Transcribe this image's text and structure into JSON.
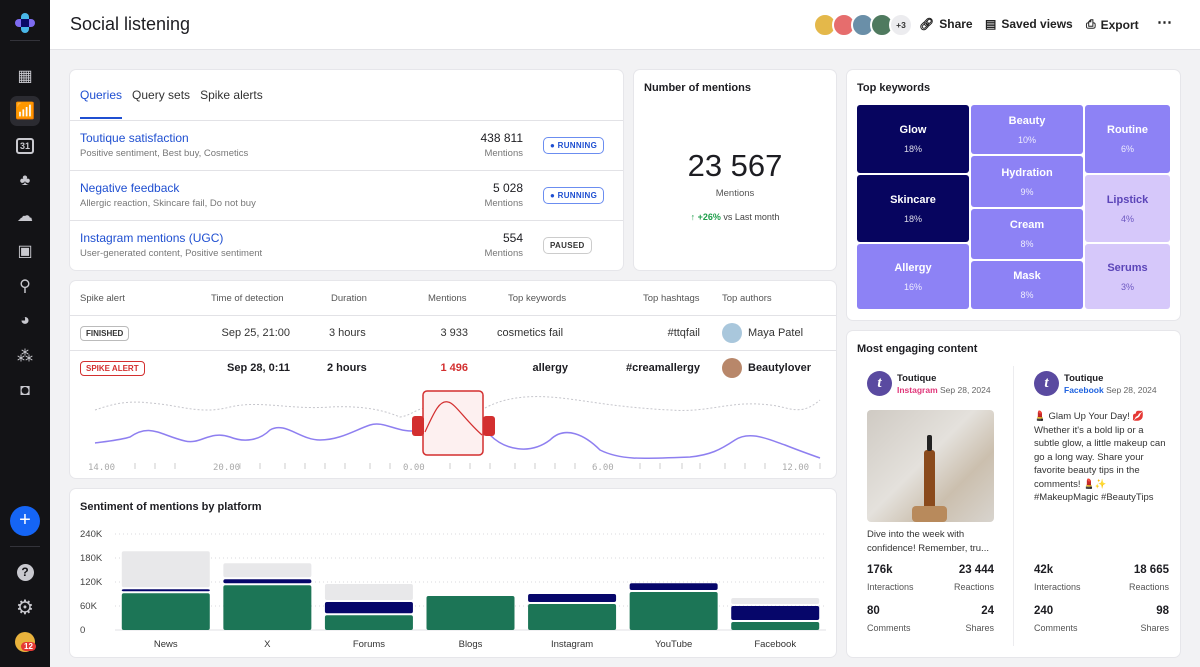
{
  "header": {
    "title": "Social listening",
    "avatars_more": "+3",
    "share": "Share",
    "saved_views": "Saved views",
    "export": "Export",
    "more": "⋯"
  },
  "sidebar": {
    "items": [
      "dashboard-icon",
      "analytics-icon",
      "calendar-icon",
      "audience-icon",
      "publish-icon",
      "media-icon",
      "workflow-icon",
      "engagement-icon",
      "reviews-icon",
      "bot-icon"
    ],
    "calendar_day": "31",
    "add": "+",
    "help": "?",
    "notifications": "12"
  },
  "queries": {
    "tabs": [
      "Queries",
      "Query sets",
      "Spike alerts"
    ],
    "rows": [
      {
        "name": "Toutique satisfaction",
        "tags": "Positive sentiment, Best buy, Cosmetics",
        "count": "438 811",
        "label": "Mentions",
        "status": "RUNNING"
      },
      {
        "name": "Negative feedback",
        "tags": "Allergic reaction, Skincare fail, Do not buy",
        "count": "5 028",
        "label": "Mentions",
        "status": "RUNNING"
      },
      {
        "name": "Instagram mentions (UGC)",
        "tags": "User-generated content, Positive sentiment",
        "count": "554",
        "label": "Mentions",
        "status": "PAUSED"
      }
    ]
  },
  "mentions": {
    "title": "Number of mentions",
    "value": "23 567",
    "label": "Mentions",
    "change": "+26%",
    "compare": "vs Last month"
  },
  "keywords": {
    "title": "Top keywords",
    "items": [
      {
        "k": "Glow",
        "p": "18%"
      },
      {
        "k": "Skincare",
        "p": "18%"
      },
      {
        "k": "Allergy",
        "p": "16%"
      },
      {
        "k": "Beauty",
        "p": "10%"
      },
      {
        "k": "Hydration",
        "p": "9%"
      },
      {
        "k": "Cream",
        "p": "8%"
      },
      {
        "k": "Mask",
        "p": "8%"
      },
      {
        "k": "Routine",
        "p": "6%"
      },
      {
        "k": "Lipstick",
        "p": "4%"
      },
      {
        "k": "Serums",
        "p": "3%"
      }
    ],
    "colors": {
      "dark": "#07055f",
      "mid": "#8d82f5",
      "light": "#d6c8fa"
    }
  },
  "spikes": {
    "headers": [
      "Spike alert",
      "Time of detection",
      "Duration",
      "Mentions",
      "Top keywords",
      "Top hashtags",
      "Top authors"
    ],
    "rows": [
      {
        "status": "FINISHED",
        "time": "Sep 25, 21:00",
        "duration": "3 hours",
        "mentions": "3 933",
        "keyword": "cosmetics fail",
        "hashtag": "#ttqfail",
        "author": "Maya Patel"
      },
      {
        "status": "SPIKE ALERT",
        "time": "Sep 28, 0:11",
        "duration": "2 hours",
        "mentions": "1 496",
        "keyword": "allergy",
        "hashtag": "#creamallergy",
        "author": "Beautylover"
      }
    ],
    "x_ticks": [
      "14.00",
      "20.00",
      "0.00",
      "6.00",
      "12.00"
    ],
    "alert_color": "#d32f2f"
  },
  "chart_data": {
    "type": "bar",
    "title": "Sentiment of mentions by platform",
    "categories": [
      "News",
      "X",
      "Forums",
      "Blogs",
      "Instagram",
      "YouTube",
      "Facebook"
    ],
    "ylim": [
      0,
      240000
    ],
    "yticks": [
      "0",
      "60K",
      "120K",
      "180K",
      "240K"
    ],
    "ytick_values": [
      0,
      60000,
      120000,
      180000,
      240000
    ],
    "stacked": true,
    "grid": true,
    "series": [
      {
        "color": "#1c7556",
        "values": [
          92000,
          112000,
          37000,
          85000,
          65000,
          95000,
          20000
        ]
      },
      {
        "color": "#06066a",
        "values": [
          10000,
          15000,
          33000,
          0,
          25000,
          22000,
          40000
        ]
      },
      {
        "color": "#e8e8ea",
        "values": [
          95000,
          40000,
          45000,
          0,
          0,
          0,
          20000
        ]
      }
    ]
  },
  "engaging": {
    "title": "Most engaging content",
    "posts": [
      {
        "author": "Toutique",
        "platform": "Instagram",
        "platform_color": "#e0377a",
        "date": "Sep 28, 2024",
        "text": "Dive into the week with confidence! Remember, tru...",
        "interactions": "176k",
        "reactions": "23 444",
        "comments": "80",
        "shares": "24"
      },
      {
        "author": "Toutique",
        "platform": "Facebook",
        "platform_color": "#1f63e0",
        "date": "Sep 28, 2024",
        "text": "💄 Glam Up Your Day! 💋 Whether it's a bold lip or a subtle glow, a little makeup can go a long way. Share your favorite beauty tips in the comments! 💄✨ #MakeupMagic #BeautyTips",
        "interactions": "42k",
        "reactions": "18 665",
        "comments": "240",
        "shares": "98"
      }
    ],
    "labels": {
      "interactions": "Interactions",
      "reactions": "Reactions",
      "comments": "Comments",
      "shares": "Shares"
    }
  }
}
